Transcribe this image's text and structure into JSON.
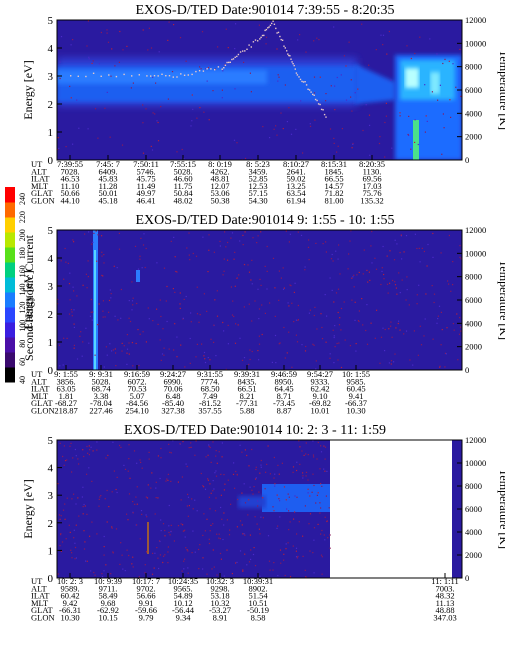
{
  "colors": {
    "background": "#2a1aa0",
    "band_blue": "#1e5ef0",
    "band_cyan": "#2bb4ff",
    "hot_spot": "#b8ffff",
    "temperature_trace": "#e8c8c8",
    "noise": "#b02040"
  },
  "colorbar": {
    "label": "Second Harmonic Current",
    "ticks": [
      "40",
      "60",
      "80",
      "100",
      "120",
      "140",
      "160",
      "180",
      "200",
      "220",
      "240"
    ],
    "colors": [
      "#000000",
      "#3a0a6e",
      "#4a0fa8",
      "#3a1ee0",
      "#2a46ff",
      "#1a7dff",
      "#00bcd8",
      "#00d080",
      "#58e01a",
      "#b8e800",
      "#ffd000",
      "#ff6a00",
      "#ff0000"
    ]
  },
  "chart_data": [
    {
      "type": "heatmap",
      "title": "EXOS-D/TED   Date:901014  7:39:55 - 8:20:35",
      "ylabel": "Energy [eV]",
      "y2label": "Temperature [K]",
      "ylim": [
        0,
        5
      ],
      "y2lim": [
        0,
        12000
      ],
      "yticks": [
        "0",
        "1",
        "2",
        "3",
        "4",
        "5"
      ],
      "y2ticks": [
        "0",
        "2000",
        "4000",
        "6000",
        "8000",
        "10000",
        "12000"
      ],
      "row_labels": [
        "UT",
        "ALT",
        "ILAT",
        "MLT",
        "GLAT",
        "GLON"
      ],
      "columns": [
        [
          "7:39:55",
          "7028.",
          "46.53",
          "11.10",
          "50.66",
          "44.10"
        ],
        [
          "7:45: 7",
          "6409.",
          "45.83",
          "11.28",
          "50.01",
          "45.18"
        ],
        [
          "7:50:11",
          "5746.",
          "45.75",
          "11.49",
          "49.97",
          "46.41"
        ],
        [
          "7:55:15",
          "5028.",
          "46.60",
          "11.75",
          "50.84",
          "48.02"
        ],
        [
          "8: 0:19",
          "4262.",
          "48.81",
          "12.07",
          "53.06",
          "50.38"
        ],
        [
          "8: 5:23",
          "3459.",
          "52.85",
          "12.53",
          "57.15",
          "54.30"
        ],
        [
          "8:10:27",
          "2641.",
          "59.02",
          "13.25",
          "63.54",
          "61.94"
        ],
        [
          "8:15:31",
          "1845.",
          "66.55",
          "14.57",
          "71.82",
          "81.00"
        ],
        [
          "8:20:35",
          "1130.",
          "69.56",
          "17.03",
          "75.76",
          "135.32"
        ]
      ],
      "temperature_trace": [
        {
          "t": "7:39:55",
          "k": 7400
        },
        {
          "t": "7:50:11",
          "k": 7200
        },
        {
          "t": "7:55:15",
          "k": 7300
        },
        {
          "t": "8: 0:19",
          "k": 8000
        },
        {
          "t": "8: 2:30",
          "k": 9000
        },
        {
          "t": "8: 5:23",
          "k": 10500
        },
        {
          "t": "8: 7:10",
          "k": 11800
        },
        {
          "t": "8: 9:00",
          "k": 9500
        },
        {
          "t": "8:10:27",
          "k": 7400
        },
        {
          "t": "8:12:30",
          "k": 5800
        },
        {
          "t": "8:14:30",
          "k": 3500
        }
      ]
    },
    {
      "type": "heatmap",
      "title": "EXOS-D/TED   Date:901014  9: 1:55 - 10: 1:55",
      "ylabel": "Energy [eV]",
      "y2label": "Temperature [K]",
      "ylim": [
        0,
        5
      ],
      "y2lim": [
        0,
        12000
      ],
      "yticks": [
        "0",
        "1",
        "2",
        "3",
        "4",
        "5"
      ],
      "y2ticks": [
        "0",
        "2000",
        "4000",
        "6000",
        "8000",
        "10000",
        "12000"
      ],
      "row_labels": [
        "UT",
        "ALT",
        "ILAT",
        "MLT",
        "GLAT",
        "GLON"
      ],
      "columns": [
        [
          "9: 1:55",
          "3856.",
          "63.05",
          "1.81",
          "-68.27",
          "218.87"
        ],
        [
          "9: 9:31",
          "5028.",
          "68.74",
          "3.38",
          "-78.04",
          "227.46"
        ],
        [
          "9:16:59",
          "6072.",
          "70.53",
          "5.07",
          "-84.56",
          "254.10"
        ],
        [
          "9:24:27",
          "6990.",
          "70.06",
          "6.48",
          "-85.40",
          "327.38"
        ],
        [
          "9:31:55",
          "7774.",
          "68.50",
          "7.49",
          "-81.52",
          "357.55"
        ],
        [
          "9:39:31",
          "8435.",
          "66.51",
          "8.21",
          "-77.31",
          "5.88"
        ],
        [
          "9:46:59",
          "8950.",
          "64.45",
          "8.71",
          "-73.45",
          "8.87"
        ],
        [
          "9:54:27",
          "9333.",
          "62.42",
          "9.10",
          "-69.82",
          "10.01"
        ],
        [
          "10: 1:55",
          "9585.",
          "60.45",
          "9.41",
          "-66.37",
          "10.30"
        ]
      ]
    },
    {
      "type": "heatmap",
      "title": "EXOS-D/TED   Date:901014  10: 2: 3 - 11: 1:59",
      "ylabel": "Energy [eV]",
      "y2label": "Temperature [K]",
      "ylim": [
        0,
        5
      ],
      "y2lim": [
        0,
        12000
      ],
      "yticks": [
        "0",
        "1",
        "2",
        "3",
        "4",
        "5"
      ],
      "y2ticks": [
        "0",
        "2000",
        "4000",
        "6000",
        "8000",
        "10000",
        "12000"
      ],
      "row_labels": [
        "UT",
        "ALT",
        "ILAT",
        "MLT",
        "GLAT",
        "GLON"
      ],
      "columns": [
        [
          "10: 2: 3",
          "9589.",
          "60.42",
          "9.42",
          "-66.31",
          "10.30"
        ],
        [
          "10: 9:39",
          "9711.",
          "58.49",
          "9.68",
          "-62.92",
          "10.15"
        ],
        [
          "10:17: 7",
          "9702.",
          "56.66",
          "9.91",
          "-59.66",
          "9.79"
        ],
        [
          "10:24:35",
          "9565.",
          "54.89",
          "10.12",
          "-56.44",
          "9.34"
        ],
        [
          "10:32: 3",
          "9298.",
          "53.18",
          "10.32",
          "-53.27",
          "8.91"
        ],
        [
          "10:39:31",
          "8902.",
          "51.54",
          "10.51",
          "-50.19",
          "8.58"
        ],
        [
          "11: 1:11",
          "7003.",
          "48.32",
          "11.13",
          "48.88",
          "347.03"
        ]
      ]
    }
  ]
}
